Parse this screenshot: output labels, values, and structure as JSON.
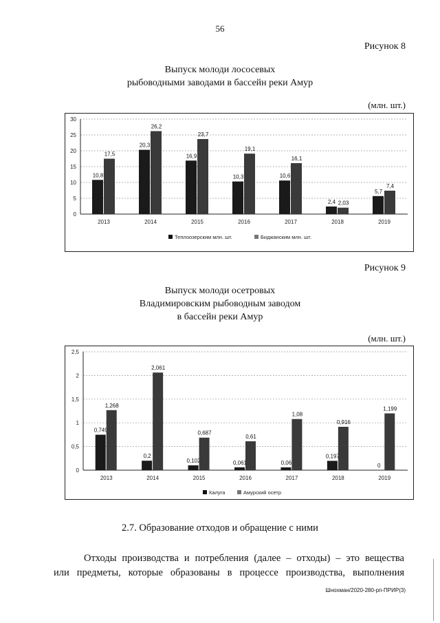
{
  "page_number": "56",
  "figure8": {
    "label": "Рисунок 8",
    "title_line1": "Выпуск молоди лососевых",
    "title_line2": "рыбоводными заводами в бассейн реки Амур",
    "unit": "(млн. шт.)"
  },
  "figure9": {
    "label": "Рисунок 9",
    "title_line1": "Выпуск молоди осетровых",
    "title_line2": "Владимировским рыбоводным заводом",
    "title_line3": "в бассейн реки Амур",
    "unit": "(млн. шт.)"
  },
  "chart_data": [
    {
      "type": "bar",
      "categories": [
        "2013",
        "2014",
        "2015",
        "2016",
        "2017",
        "2018",
        "2019"
      ],
      "series": [
        {
          "name": "Теплоозерским млн. шт.",
          "values": [
            10.8,
            20.3,
            16.9,
            10.3,
            10.6,
            2.4,
            5.7
          ],
          "labels": [
            "10,8",
            "20,3",
            "16,9",
            "10,3",
            "10,6",
            "2,4",
            "5,7"
          ],
          "color": "#1a1a1a"
        },
        {
          "name": "Биджанским млн. шт.",
          "values": [
            17.5,
            26.2,
            23.7,
            19.1,
            16.1,
            2.03,
            7.4
          ],
          "labels": [
            "17,5",
            "26,2",
            "23,7",
            "19,1",
            "16,1",
            "2,03",
            "7,4"
          ],
          "color": "#3a3a3a"
        }
      ],
      "ylim": [
        0,
        30
      ],
      "yticks": [
        0,
        5,
        10,
        15,
        20,
        25,
        30
      ],
      "ytick_labels": [
        "0",
        "5",
        "10",
        "15",
        "20",
        "25",
        "30"
      ],
      "grid": true,
      "legend": "bottom"
    },
    {
      "type": "bar",
      "categories": [
        "2013",
        "2014",
        "2015",
        "2016",
        "2017",
        "2018",
        "2019"
      ],
      "series": [
        {
          "name": "Калуга",
          "values": [
            0.749,
            0.2,
            0.102,
            0.061,
            0.06,
            0.197,
            0
          ],
          "labels": [
            "0,749",
            "0,2",
            "0,102",
            "0,061",
            "0,06",
            "0,197",
            "0"
          ],
          "color": "#1a1a1a"
        },
        {
          "name": "Амурский осетр",
          "values": [
            1.268,
            2.061,
            0.687,
            0.61,
            1.08,
            0.916,
            1.199
          ],
          "labels": [
            "1,268",
            "2,061",
            "0,687",
            "0,61",
            "1,08",
            "0,916",
            "1,199"
          ],
          "color": "#3a3a3a"
        }
      ],
      "ylim": [
        0,
        2.5
      ],
      "yticks": [
        0,
        0.5,
        1,
        1.5,
        2,
        2.5
      ],
      "ytick_labels": [
        "0",
        "0,5",
        "1",
        "1,5",
        "2",
        "2,5"
      ],
      "grid": true,
      "legend": "bottom"
    }
  ],
  "section": {
    "heading": "2.7. Образование отходов и обращение с ними",
    "para_line1": "Отходы производства и потребления (далее – отходы) – это вещества",
    "para_line2": "или предметы, которые образованы в процессе производства, выполнения"
  },
  "footer_code": "Шнохман/2020-280-рп-ПРИР(3)"
}
